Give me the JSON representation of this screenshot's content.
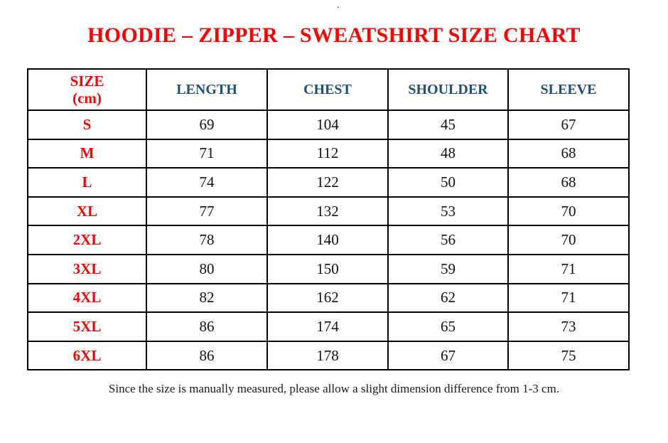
{
  "page": {
    "stray_mark": ".",
    "title": "HOODIE – ZIPPER – SWEATSHIRT SIZE CHART",
    "footnote": "Since the size is manually measured, please allow a slight dimension difference from 1-3 cm."
  },
  "colors": {
    "title_red": "#FE0000",
    "size_label_red": "#FE0000",
    "header_blue": "#1F4E79",
    "value_black": "#111111",
    "border_black": "#000000",
    "background": "#FFFFFF"
  },
  "table": {
    "headers": {
      "size": "SIZE",
      "size_unit": "(cm)",
      "length": "LENGTH",
      "chest": "CHEST",
      "shoulder": "SHOULDER",
      "sleeve": "SLEEVE"
    },
    "rows": [
      {
        "size": "S",
        "length": "69",
        "chest": "104",
        "shoulder": "45",
        "sleeve": "67"
      },
      {
        "size": "M",
        "length": "71",
        "chest": "112",
        "shoulder": "48",
        "sleeve": "68"
      },
      {
        "size": "L",
        "length": "74",
        "chest": "122",
        "shoulder": "50",
        "sleeve": "68"
      },
      {
        "size": "XL",
        "length": "77",
        "chest": "132",
        "shoulder": "53",
        "sleeve": "70"
      },
      {
        "size": "2XL",
        "length": "78",
        "chest": "140",
        "shoulder": "56",
        "sleeve": "70"
      },
      {
        "size": "3XL",
        "length": "80",
        "chest": "150",
        "shoulder": "59",
        "sleeve": "71"
      },
      {
        "size": "4XL",
        "length": "82",
        "chest": "162",
        "shoulder": "62",
        "sleeve": "71"
      },
      {
        "size": "5XL",
        "length": "86",
        "chest": "174",
        "shoulder": "65",
        "sleeve": "73"
      },
      {
        "size": "6XL",
        "length": "86",
        "chest": "178",
        "shoulder": "67",
        "sleeve": "75"
      }
    ]
  }
}
